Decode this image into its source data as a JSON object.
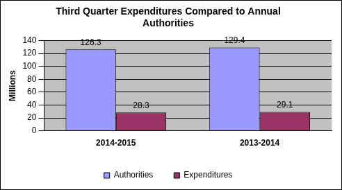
{
  "chart_data": {
    "type": "bar",
    "title": "Third Quarter Expenditures Compared to Annual Authorities",
    "y_label": "Millions",
    "categories": [
      "2014-2015",
      "2013-2014"
    ],
    "series": [
      {
        "name": "Authorities",
        "color": "#9999ff",
        "values": [
          126.3,
          129.4
        ]
      },
      {
        "name": "Expenditures",
        "color": "#993366",
        "values": [
          28.3,
          29.1
        ]
      }
    ],
    "ylim": [
      0,
      140
    ],
    "yticks": [
      0,
      20,
      40,
      60,
      80,
      100,
      120,
      140
    ],
    "grid": true,
    "legend": "bottom",
    "data_labels": true
  }
}
